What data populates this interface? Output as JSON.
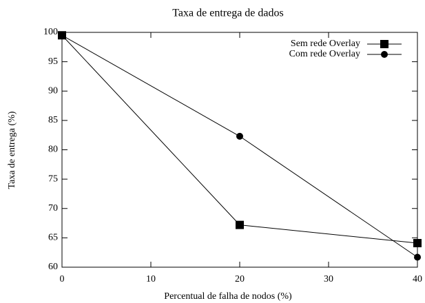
{
  "chart_data": {
    "type": "line",
    "title": "Taxa de entrega de dados",
    "x_label": "Percentual de falha de nodos (%)",
    "y_label": "Taxa de entrega (%)",
    "x": [
      0,
      20,
      40
    ],
    "series": [
      {
        "name": "Sem rede Overlay",
        "color": "#000000",
        "marker": "square",
        "values": [
          99.5,
          67.2,
          64.1
        ]
      },
      {
        "name": "Com rede Overlay",
        "color": "#000000",
        "marker": "circle",
        "values": [
          99.5,
          82.3,
          61.7
        ]
      }
    ],
    "xlim": [
      0,
      40
    ],
    "xticks": [
      0,
      10,
      20,
      30,
      40
    ],
    "ylim": [
      60,
      100
    ],
    "yticks": [
      60,
      65,
      70,
      75,
      80,
      85,
      90,
      95,
      100
    ],
    "legend": "top-right"
  }
}
